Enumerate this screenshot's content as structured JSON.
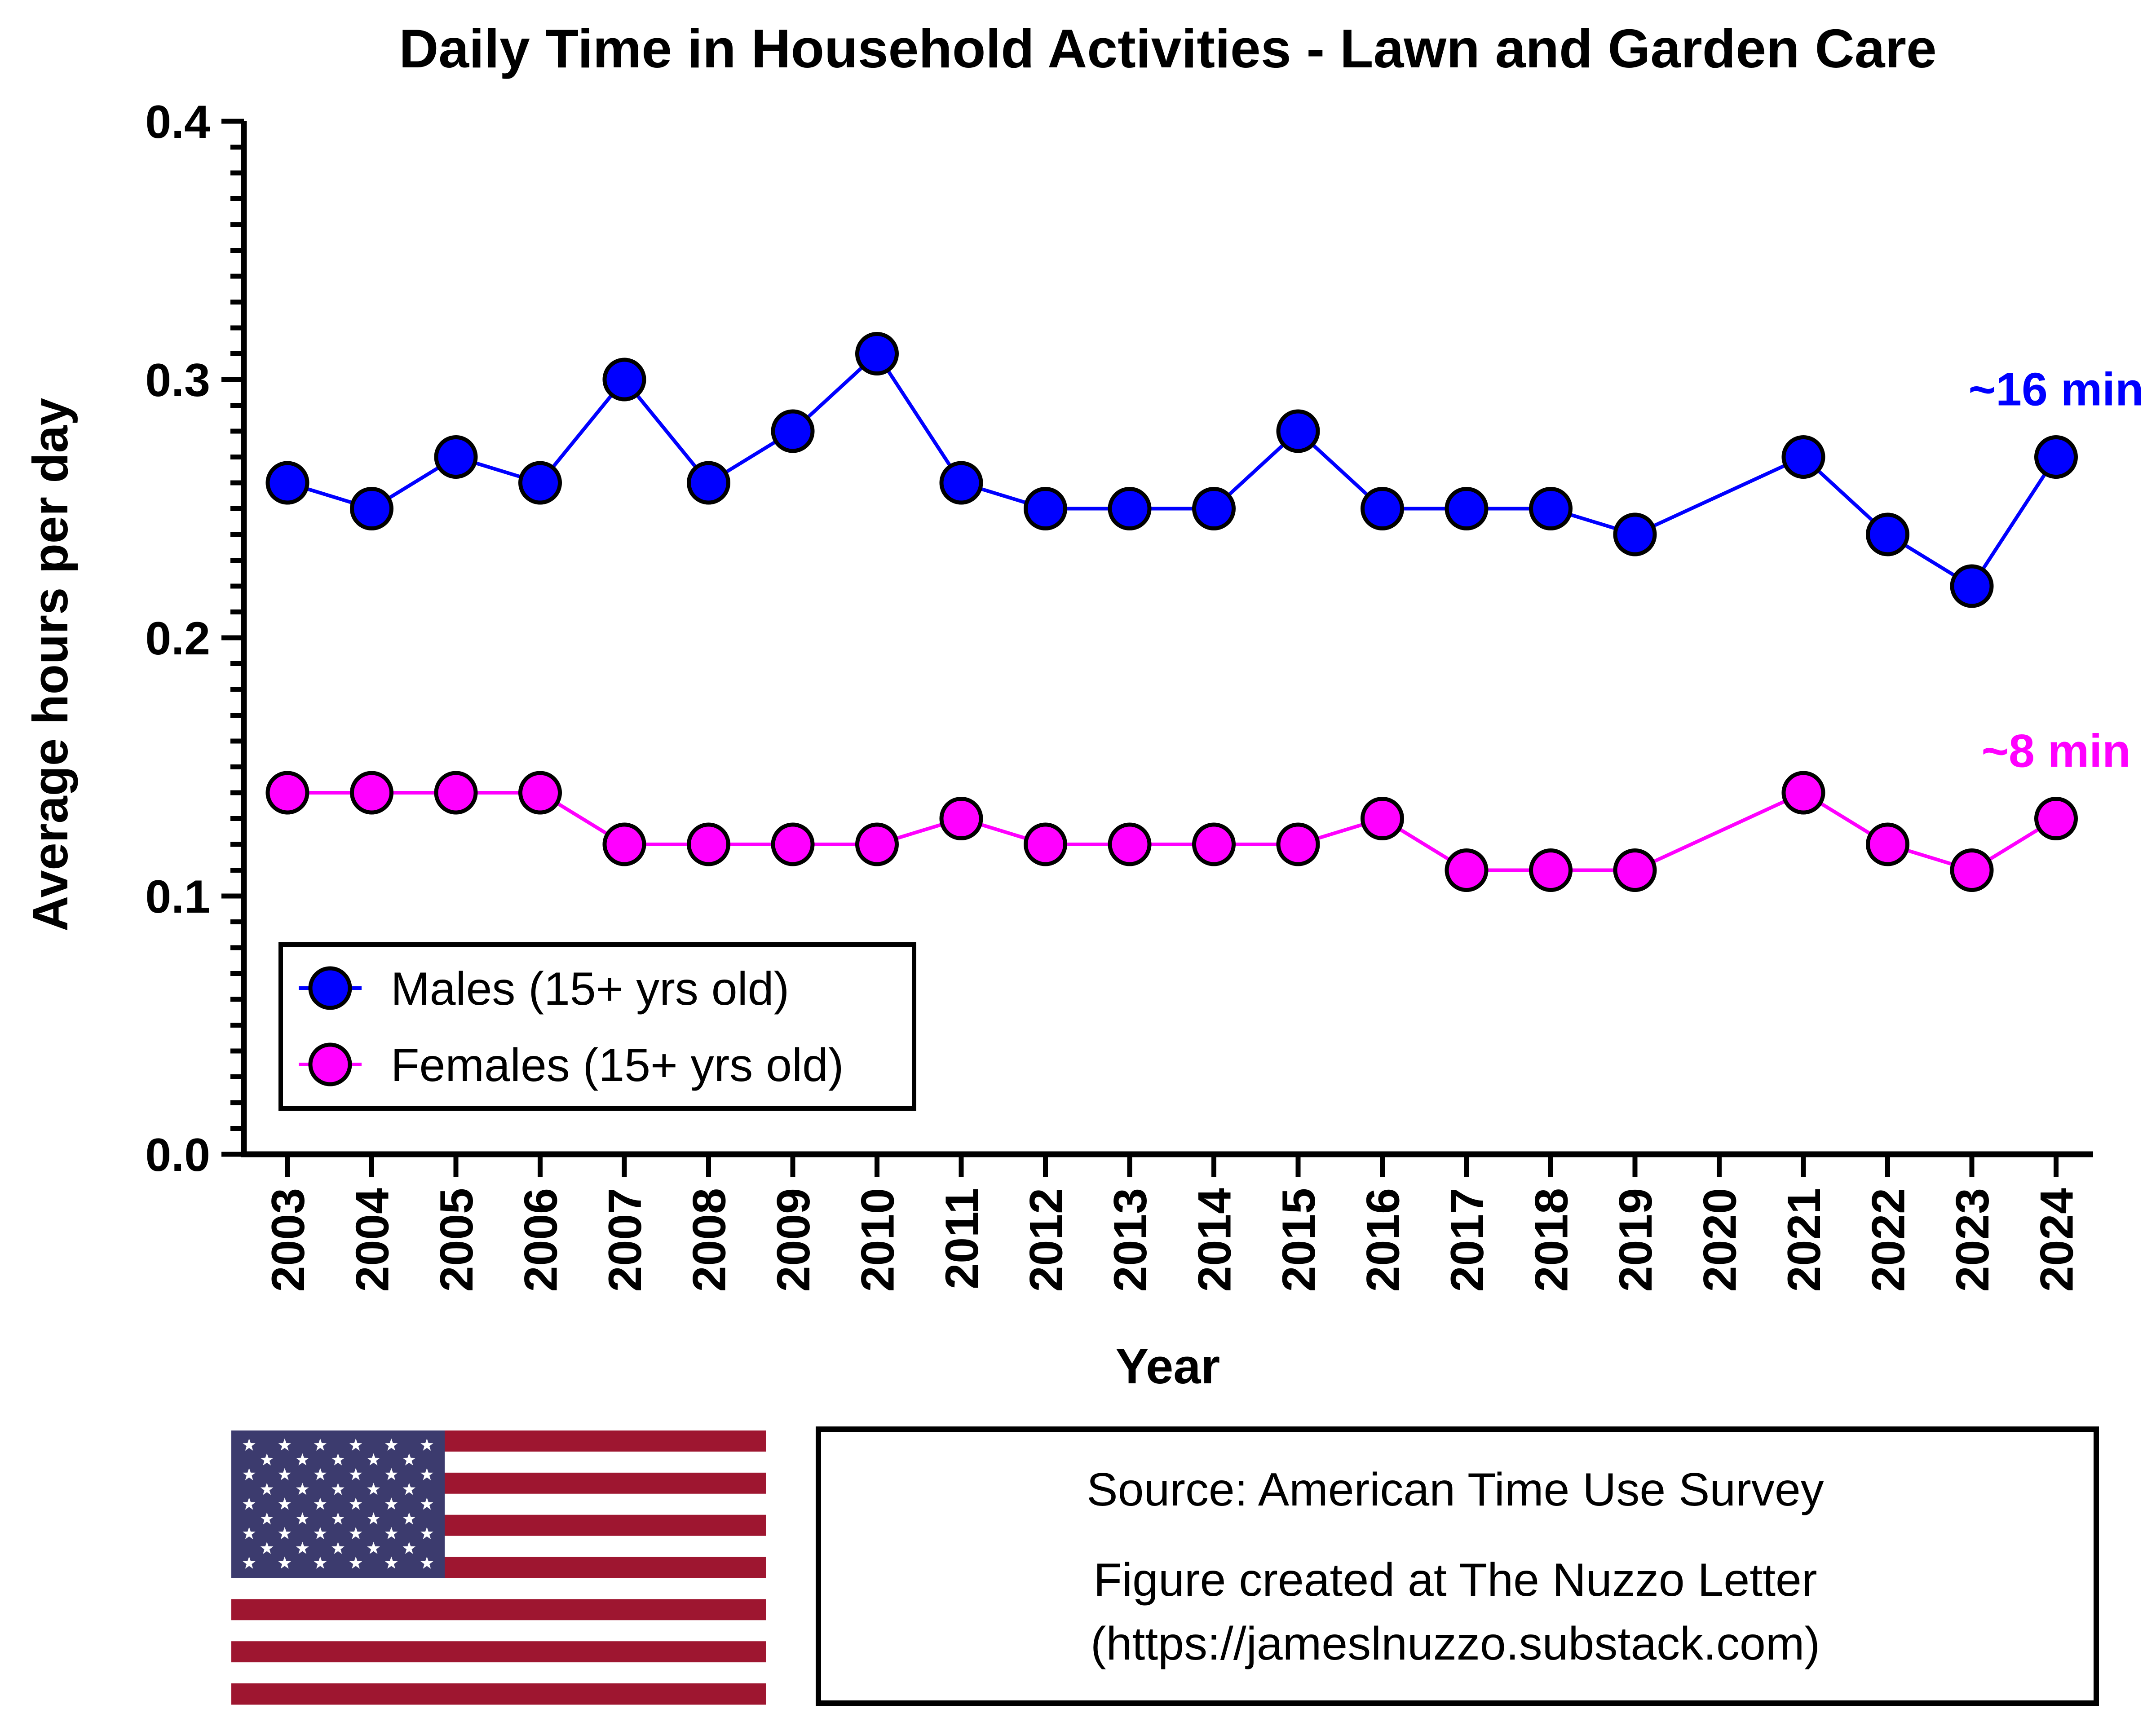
{
  "chart_data": {
    "type": "line",
    "title": "Daily Time in Household Activities - Lawn and Garden Care",
    "xlabel": "Year",
    "ylabel": "Average hours per day",
    "ylim": [
      0,
      0.4
    ],
    "yticks": [
      "0.0",
      "0.1",
      "0.2",
      "0.3",
      "0.4"
    ],
    "categories": [
      "2003",
      "2004",
      "2005",
      "2006",
      "2007",
      "2008",
      "2009",
      "2010",
      "2011",
      "2012",
      "2013",
      "2014",
      "2015",
      "2016",
      "2017",
      "2018",
      "2019",
      "2020",
      "2021",
      "2022",
      "2023",
      "2024"
    ],
    "grid": false,
    "legend_position": "bottom-left",
    "series": [
      {
        "name": "Males (15+ yrs old)",
        "color": "#0000ff",
        "values": [
          0.26,
          0.25,
          0.27,
          0.26,
          0.3,
          0.26,
          0.28,
          0.31,
          0.26,
          0.25,
          0.25,
          0.25,
          0.28,
          0.25,
          0.25,
          0.25,
          0.24,
          null,
          0.27,
          0.24,
          0.22,
          0.27
        ],
        "annotation": "~16 min"
      },
      {
        "name": "Females (15+ yrs old)",
        "color": "#ff00ff",
        "values": [
          0.14,
          0.14,
          0.14,
          0.14,
          0.12,
          0.12,
          0.12,
          0.12,
          0.13,
          0.12,
          0.12,
          0.12,
          0.12,
          0.13,
          0.11,
          0.11,
          0.11,
          null,
          0.14,
          0.12,
          0.11,
          0.13
        ],
        "annotation": "~8 min"
      }
    ]
  },
  "source_box": {
    "line1": "Source: American Time Use Survey",
    "line2": "Figure created at The Nuzzo Letter",
    "line3": "(https://jameslnuzzo.substack.com)"
  },
  "flag": {
    "icon": "us-flag-icon",
    "colors": {
      "red": "#9e1630",
      "blue": "#3c3b6e",
      "white": "#ffffff"
    }
  }
}
